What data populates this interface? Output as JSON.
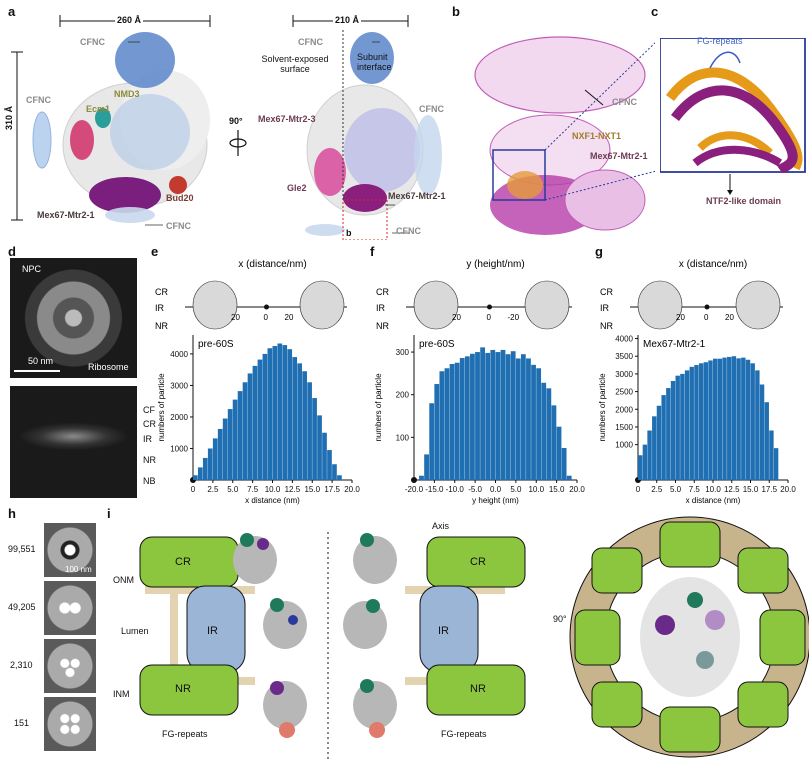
{
  "panel_labels": {
    "a": "a",
    "b": "b",
    "c": "c",
    "d": "d",
    "e": "e",
    "f": "f",
    "g": "g",
    "h": "h",
    "i": "i"
  },
  "panel_a": {
    "width_left": "260 Å",
    "height_left": "310 Å",
    "width_right": "210 Å",
    "rotate": "90°",
    "cfnc": "CFNC",
    "nmd3": "NMD3",
    "ecm1": "Ecm1",
    "bud20": "Bud20",
    "mex_left": "Mex67-Mtr2-1",
    "mex3": "Mex67-Mtr2-3",
    "mex1": "Mex67-Mtr2-1",
    "gle2": "Gle2",
    "solvent": "Solvent-exposed surface",
    "subunit": "Subunit interface",
    "inset_b": "b"
  },
  "panel_b": {
    "cfnc": "CFNC",
    "nxf": "NXF1-NXT1",
    "mex": "Mex67-Mtr2-1"
  },
  "panel_c": {
    "fg": "FG-repeats",
    "ntf2": "NTF2-like domain"
  },
  "panel_d": {
    "npc": "NPC",
    "scale": "50 nm",
    "ribosome": "Ribosome",
    "layers": [
      "CF",
      "CR",
      "IR",
      "NR",
      "NB"
    ]
  },
  "pore_labels": {
    "cr": "CR",
    "ir": "IR",
    "nr": "NR"
  },
  "panel_h": {
    "counts": [
      "99,551",
      "49,205",
      "2,310",
      "151"
    ],
    "scale": "100 nm"
  },
  "panel_i": {
    "axis": "Axis",
    "onm": "ONM",
    "lumen": "Lumen",
    "inm": "INM",
    "cr": "CR",
    "ir": "IR",
    "nr": "NR",
    "fg1": "FG-repeats",
    "fg2": "FG-repeats",
    "rotate": "90°"
  },
  "chart_data": [
    {
      "type": "bar",
      "title": "x (distance/nm)",
      "annotation": "pre-60S",
      "xlabel": "x distance (nm)",
      "ylabel": "numbers of particle",
      "xlim": [
        0,
        20
      ],
      "ylim": [
        0,
        4600
      ],
      "xticks": [
        "0",
        "2.5",
        "5.0",
        "7.5",
        "10.0",
        "12.5",
        "15.0",
        "17.5",
        "20.0"
      ],
      "yticks": [
        "1000",
        "2000",
        "3000",
        "4000"
      ],
      "schematic_ticks": [
        "20",
        "0",
        "20"
      ],
      "bin_width": 0.625,
      "x": [
        0.3125,
        0.9375,
        1.5625,
        2.1875,
        2.8125,
        3.4375,
        4.0625,
        4.6875,
        5.3125,
        5.9375,
        6.5625,
        7.1875,
        7.8125,
        8.4375,
        9.0625,
        9.6875,
        10.3125,
        10.9375,
        11.5625,
        12.1875,
        12.8125,
        13.4375,
        14.0625,
        14.6875,
        15.3125,
        15.9375,
        16.5625,
        17.1875,
        17.8125,
        18.4375
      ],
      "values": [
        150,
        400,
        700,
        1000,
        1320,
        1620,
        1950,
        2250,
        2550,
        2820,
        3100,
        3380,
        3620,
        3820,
        4000,
        4180,
        4250,
        4330,
        4280,
        4150,
        3900,
        3700,
        3450,
        3100,
        2600,
        2050,
        1500,
        950,
        500,
        150
      ]
    },
    {
      "type": "bar",
      "title": "y (height/nm)",
      "annotation": "pre-60S",
      "xlabel": "y height (nm)",
      "ylabel": "numbers of particle",
      "xlim": [
        -20,
        20
      ],
      "ylim": [
        0,
        340
      ],
      "xticks": [
        "-20.0",
        "-15.0",
        "-10.0",
        "-5.0",
        "0.0",
        "5.0",
        "10.0",
        "15.0",
        "20.0"
      ],
      "yticks": [
        "100",
        "200",
        "300"
      ],
      "schematic_ticks": [
        "20",
        "0",
        "-20"
      ],
      "bin_width": 1.25,
      "x": [
        -18.125,
        -16.875,
        -15.625,
        -14.375,
        -13.125,
        -11.875,
        -10.625,
        -9.375,
        -8.125,
        -6.875,
        -5.625,
        -4.375,
        -3.125,
        -1.875,
        -0.625,
        0.625,
        1.875,
        3.125,
        4.375,
        5.625,
        6.875,
        8.125,
        9.375,
        10.625,
        11.875,
        13.125,
        14.375,
        15.625,
        16.875,
        18.125
      ],
      "values": [
        10,
        60,
        180,
        225,
        255,
        262,
        272,
        275,
        286,
        290,
        296,
        300,
        311,
        298,
        305,
        300,
        305,
        295,
        302,
        285,
        295,
        285,
        270,
        262,
        228,
        215,
        175,
        125,
        75,
        10
      ]
    },
    {
      "type": "bar",
      "title": "x (distance/nm)",
      "annotation": "Mex67-Mtr2-1",
      "xlabel": "x distance (nm)",
      "ylabel": "numbers of particle",
      "xlim": [
        0,
        20
      ],
      "ylim": [
        0,
        4100
      ],
      "xticks": [
        "0",
        "2.5",
        "5.0",
        "7.5",
        "10.0",
        "12.5",
        "15.0",
        "17.5",
        "20.0"
      ],
      "yticks": [
        "1000",
        "1500",
        "2000",
        "2500",
        "3000",
        "3500",
        "4000"
      ],
      "schematic_ticks": [
        "20",
        "0",
        "20"
      ],
      "bin_width": 0.625,
      "x": [
        0.3125,
        0.9375,
        1.5625,
        2.1875,
        2.8125,
        3.4375,
        4.0625,
        4.6875,
        5.3125,
        5.9375,
        6.5625,
        7.1875,
        7.8125,
        8.4375,
        9.0625,
        9.6875,
        10.3125,
        10.9375,
        11.5625,
        12.1875,
        12.8125,
        13.4375,
        14.0625,
        14.6875,
        15.3125,
        15.9375,
        16.5625,
        17.1875,
        17.8125,
        18.4375
      ],
      "values": [
        700,
        1000,
        1400,
        1800,
        2100,
        2400,
        2600,
        2800,
        2950,
        3000,
        3100,
        3200,
        3250,
        3300,
        3330,
        3380,
        3430,
        3430,
        3460,
        3480,
        3500,
        3440,
        3460,
        3400,
        3300,
        3100,
        2700,
        2200,
        1400,
        900
      ]
    }
  ]
}
